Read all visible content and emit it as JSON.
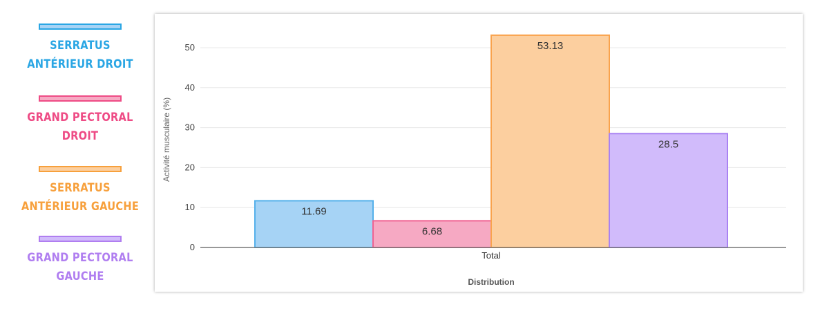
{
  "chart_data": {
    "type": "bar",
    "categories": [
      "Total"
    ],
    "series": [
      {
        "name": "SERRATUS ANTÉRIEUR DROIT",
        "values": [
          11.69
        ],
        "fill": "#a6d3f5",
        "stroke": "#55b0ea",
        "legend_color": "#2aa6e4"
      },
      {
        "name": "GRAND PECTORAL DROIT",
        "values": [
          6.68
        ],
        "fill": "#f6a9c3",
        "stroke": "#f06292",
        "legend_color": "#ee4b85"
      },
      {
        "name": "SERRATUS ANTÉRIEUR GAUCHE",
        "values": [
          53.13
        ],
        "fill": "#fccf9f",
        "stroke": "#f9a34d",
        "legend_color": "#f7a03c"
      },
      {
        "name": "GRAND PECTORAL GAUCHE",
        "values": [
          28.5
        ],
        "fill": "#d1bbfb",
        "stroke": "#a982f2",
        "legend_color": "#b07ef0"
      }
    ],
    "data_labels": [
      "11.69",
      "6.68",
      "53.13",
      "28.5"
    ],
    "xlabel": "Distribution",
    "ylabel": "Activité musculaire (%)",
    "ylim": [
      0,
      55
    ],
    "yticks": [
      0,
      10,
      20,
      30,
      40,
      50
    ],
    "ytick_labels": [
      "0",
      "10",
      "20",
      "30",
      "40",
      "50"
    ],
    "grid": true,
    "legend_position": "left"
  }
}
